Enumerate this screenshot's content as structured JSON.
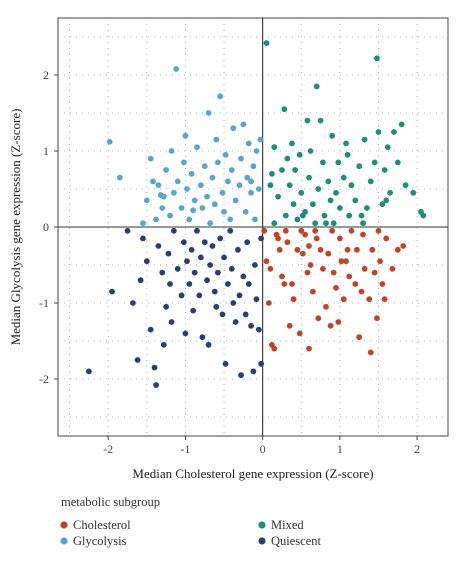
{
  "chart_data": {
    "type": "scatter",
    "title": "",
    "xlabel": "Median Cholesterol gene expression (Z-score)",
    "ylabel": "Median Glycolysis gene expression (Z-score)",
    "xlim": [
      -2.65,
      2.4
    ],
    "ylim": [
      -2.75,
      2.75
    ],
    "xticks": [
      -2,
      -1,
      0,
      1,
      2
    ],
    "yticks": [
      -2,
      -1,
      0,
      1,
      2
    ],
    "reference_lines": {
      "x": 0,
      "y": 0
    },
    "grid": "dotted",
    "legend": {
      "title": "metabolic subgroup",
      "placement": "bottom",
      "entries": [
        {
          "name": "Cholesterol",
          "color": "#c0442a"
        },
        {
          "name": "Mixed",
          "color": "#1e8f74"
        },
        {
          "name": "Glycolysis",
          "color": "#5aa7c3"
        },
        {
          "name": "Quiescent",
          "color": "#2b3f6e"
        }
      ]
    },
    "series": [
      {
        "name": "Cholesterol",
        "color": "#c0442a",
        "points": [
          [
            0.02,
            -0.05
          ],
          [
            0.05,
            -0.45
          ],
          [
            0.1,
            -0.55
          ],
          [
            0.12,
            -1.55
          ],
          [
            0.15,
            -1.6
          ],
          [
            0.2,
            -0.15
          ],
          [
            0.22,
            -0.3
          ],
          [
            0.25,
            -0.65
          ],
          [
            0.28,
            -0.75
          ],
          [
            0.3,
            -0.05
          ],
          [
            0.32,
            -0.2
          ],
          [
            0.35,
            -1.3
          ],
          [
            0.4,
            -0.95
          ],
          [
            0.45,
            -0.3
          ],
          [
            0.48,
            -1.4
          ],
          [
            0.5,
            -0.05
          ],
          [
            0.52,
            -0.35
          ],
          [
            0.55,
            -0.1
          ],
          [
            0.58,
            -0.6
          ],
          [
            0.6,
            -0.25
          ],
          [
            0.6,
            -1.6
          ],
          [
            0.62,
            -0.5
          ],
          [
            0.65,
            -0.85
          ],
          [
            0.7,
            -0.15
          ],
          [
            0.72,
            -1.2
          ],
          [
            0.75,
            -0.3
          ],
          [
            0.78,
            -0.55
          ],
          [
            0.82,
            -1.05
          ],
          [
            0.85,
            -0.35
          ],
          [
            0.9,
            -0.05
          ],
          [
            0.92,
            -0.6
          ],
          [
            0.95,
            -0.8
          ],
          [
            0.98,
            -1.25
          ],
          [
            1.0,
            -0.15
          ],
          [
            1.02,
            -0.45
          ],
          [
            1.05,
            -0.95
          ],
          [
            1.1,
            -0.3
          ],
          [
            1.12,
            -0.65
          ],
          [
            1.15,
            -0.05
          ],
          [
            1.2,
            -0.75
          ],
          [
            1.22,
            -0.3
          ],
          [
            1.25,
            -1.45
          ],
          [
            1.3,
            -0.1
          ],
          [
            1.32,
            -0.55
          ],
          [
            1.38,
            -0.95
          ],
          [
            1.42,
            -0.3
          ],
          [
            1.45,
            -0.6
          ],
          [
            1.48,
            -1.2
          ],
          [
            1.5,
            -0.05
          ],
          [
            1.52,
            -0.45
          ],
          [
            1.55,
            -0.75
          ],
          [
            1.6,
            -0.15
          ],
          [
            1.68,
            -0.55
          ],
          [
            1.75,
            -0.3
          ],
          [
            1.82,
            -0.25
          ],
          [
            0.08,
            -1.0
          ],
          [
            0.18,
            -0.1
          ],
          [
            0.38,
            -0.75
          ],
          [
            0.68,
            -0.05
          ],
          [
            0.88,
            -1.3
          ],
          [
            1.08,
            -0.45
          ],
          [
            1.28,
            -0.85
          ],
          [
            1.4,
            -1.65
          ],
          [
            1.58,
            -0.95
          ]
        ]
      },
      {
        "name": "Mixed",
        "color": "#1e8f74",
        "points": [
          [
            0.05,
            2.42
          ],
          [
            0.1,
            0.55
          ],
          [
            0.15,
            0.05
          ],
          [
            0.15,
            1.05
          ],
          [
            0.2,
            0.4
          ],
          [
            0.25,
            0.75
          ],
          [
            0.28,
            1.55
          ],
          [
            0.3,
            0.15
          ],
          [
            0.35,
            0.55
          ],
          [
            0.38,
            1.1
          ],
          [
            0.4,
            0.3
          ],
          [
            0.42,
            0.75
          ],
          [
            0.45,
            0.1
          ],
          [
            0.48,
            0.95
          ],
          [
            0.5,
            0.45
          ],
          [
            0.55,
            0.2
          ],
          [
            0.58,
            1.4
          ],
          [
            0.6,
            0.65
          ],
          [
            0.62,
            1.0
          ],
          [
            0.65,
            0.3
          ],
          [
            0.68,
            0.05
          ],
          [
            0.7,
            1.85
          ],
          [
            0.72,
            0.5
          ],
          [
            0.75,
            1.4
          ],
          [
            0.78,
            0.85
          ],
          [
            0.8,
            0.15
          ],
          [
            0.85,
            0.6
          ],
          [
            0.88,
            0.35
          ],
          [
            0.9,
            1.2
          ],
          [
            0.92,
            0.05
          ],
          [
            0.95,
            0.45
          ],
          [
            0.98,
            0.85
          ],
          [
            1.0,
            0.25
          ],
          [
            1.05,
            0.65
          ],
          [
            1.08,
            1.1
          ],
          [
            1.12,
            0.15
          ],
          [
            1.15,
            0.55
          ],
          [
            1.2,
            0.35
          ],
          [
            1.25,
            0.8
          ],
          [
            1.3,
            0.05
          ],
          [
            1.32,
            1.15
          ],
          [
            1.35,
            0.25
          ],
          [
            1.4,
            0.6
          ],
          [
            1.45,
            0.85
          ],
          [
            1.48,
            2.22
          ],
          [
            1.5,
            1.25
          ],
          [
            1.55,
            0.3
          ],
          [
            1.58,
            0.75
          ],
          [
            1.62,
            1.05
          ],
          [
            1.65,
            0.45
          ],
          [
            1.7,
            1.25
          ],
          [
            1.75,
            0.85
          ],
          [
            1.8,
            1.35
          ],
          [
            1.85,
            0.55
          ],
          [
            2.05,
            0.2
          ],
          [
            2.08,
            0.15
          ],
          [
            1.95,
            0.45
          ],
          [
            0.12,
            0.7
          ],
          [
            0.52,
            0.15
          ],
          [
            1.1,
            0.95
          ],
          [
            1.28,
            0.15
          ],
          [
            0.32,
            0.9
          ],
          [
            0.82,
            0.05
          ],
          [
            1.6,
            0.35
          ]
        ]
      },
      {
        "name": "Glycolysis",
        "color": "#5aa7c3",
        "points": [
          [
            -1.98,
            1.12
          ],
          [
            -1.85,
            0.65
          ],
          [
            -1.55,
            0.05
          ],
          [
            -1.5,
            0.35
          ],
          [
            -1.45,
            0.9
          ],
          [
            -1.42,
            0.6
          ],
          [
            -1.38,
            0.1
          ],
          [
            -1.35,
            0.55
          ],
          [
            -1.3,
            0.25
          ],
          [
            -1.28,
            0.4
          ],
          [
            -1.25,
            0.75
          ],
          [
            -1.2,
            0.15
          ],
          [
            -1.18,
            1.0
          ],
          [
            -1.15,
            0.45
          ],
          [
            -1.12,
            2.08
          ],
          [
            -1.1,
            0.6
          ],
          [
            -1.05,
            0.25
          ],
          [
            -1.02,
            0.85
          ],
          [
            -1.0,
            1.2
          ],
          [
            -0.98,
            0.5
          ],
          [
            -0.95,
            0.1
          ],
          [
            -0.92,
            0.7
          ],
          [
            -0.88,
            0.35
          ],
          [
            -0.85,
            1.05
          ],
          [
            -0.8,
            0.55
          ],
          [
            -0.78,
            0.25
          ],
          [
            -0.75,
            0.8
          ],
          [
            -0.72,
            0.4
          ],
          [
            -0.7,
            1.5
          ],
          [
            -0.68,
            0.05
          ],
          [
            -0.65,
            0.65
          ],
          [
            -0.62,
            0.3
          ],
          [
            -0.6,
            1.15
          ],
          [
            -0.58,
            0.85
          ],
          [
            -0.55,
            1.72
          ],
          [
            -0.52,
            0.45
          ],
          [
            -0.5,
            0.2
          ],
          [
            -0.48,
            0.95
          ],
          [
            -0.45,
            0.6
          ],
          [
            -0.42,
            0.1
          ],
          [
            -0.4,
            0.75
          ],
          [
            -0.38,
            1.3
          ],
          [
            -0.35,
            0.35
          ],
          [
            -0.3,
            0.55
          ],
          [
            -0.28,
            0.9
          ],
          [
            -0.25,
            1.35
          ],
          [
            -0.22,
            0.2
          ],
          [
            -0.2,
            0.65
          ],
          [
            -0.18,
            1.1
          ],
          [
            -0.15,
            0.45
          ],
          [
            -0.12,
            0.8
          ],
          [
            -0.1,
            0.1
          ],
          [
            -0.08,
            1.0
          ],
          [
            -0.05,
            0.5
          ],
          [
            -0.03,
            1.15
          ],
          [
            -1.32,
            0.42
          ],
          [
            -0.9,
            0.22
          ],
          [
            -0.15,
            0.6
          ]
        ]
      },
      {
        "name": "Quiescent",
        "color": "#2b3f6e",
        "points": [
          [
            -2.25,
            -1.9
          ],
          [
            -1.95,
            -0.85
          ],
          [
            -1.68,
            -1.0
          ],
          [
            -1.62,
            -1.75
          ],
          [
            -1.58,
            -0.7
          ],
          [
            -1.55,
            -0.15
          ],
          [
            -1.5,
            -0.45
          ],
          [
            -1.45,
            -1.35
          ],
          [
            -1.4,
            -1.85
          ],
          [
            -1.38,
            -2.08
          ],
          [
            -1.35,
            -0.25
          ],
          [
            -1.3,
            -0.6
          ],
          [
            -1.25,
            -1.05
          ],
          [
            -1.22,
            -0.35
          ],
          [
            -1.2,
            -0.75
          ],
          [
            -1.18,
            -1.25
          ],
          [
            -1.15,
            -0.05
          ],
          [
            -1.1,
            -0.55
          ],
          [
            -1.05,
            -0.9
          ],
          [
            -1.02,
            -0.2
          ],
          [
            -1.0,
            -1.4
          ],
          [
            -0.98,
            -0.45
          ],
          [
            -0.95,
            -0.75
          ],
          [
            -0.92,
            -0.3
          ],
          [
            -0.9,
            -1.1
          ],
          [
            -0.88,
            -0.6
          ],
          [
            -0.85,
            -0.05
          ],
          [
            -0.82,
            -0.9
          ],
          [
            -0.8,
            -0.4
          ],
          [
            -0.78,
            -1.45
          ],
          [
            -0.75,
            -0.2
          ],
          [
            -0.72,
            -0.7
          ],
          [
            -0.7,
            -1.55
          ],
          [
            -0.68,
            -0.5
          ],
          [
            -0.65,
            -0.25
          ],
          [
            -0.62,
            -0.85
          ],
          [
            -0.6,
            -1.05
          ],
          [
            -0.58,
            -0.6
          ],
          [
            -0.55,
            -0.15
          ],
          [
            -0.52,
            -1.15
          ],
          [
            -0.5,
            -0.4
          ],
          [
            -0.48,
            -1.8
          ],
          [
            -0.45,
            -0.75
          ],
          [
            -0.42,
            -0.05
          ],
          [
            -0.4,
            -0.55
          ],
          [
            -0.38,
            -1.0
          ],
          [
            -0.35,
            -1.25
          ],
          [
            -0.32,
            -0.3
          ],
          [
            -0.3,
            -0.9
          ],
          [
            -0.28,
            -1.95
          ],
          [
            -0.25,
            -0.65
          ],
          [
            -0.22,
            -1.15
          ],
          [
            -0.2,
            -0.2
          ],
          [
            -0.15,
            -1.3
          ],
          [
            -0.12,
            -1.9
          ],
          [
            -0.1,
            -0.5
          ],
          [
            -0.08,
            -0.95
          ],
          [
            -0.05,
            -1.35
          ],
          [
            -0.02,
            -0.15
          ],
          [
            -1.75,
            -0.05
          ],
          [
            -1.28,
            -1.55
          ],
          [
            -0.18,
            -0.75
          ],
          [
            -0.02,
            -1.8
          ]
        ]
      }
    ]
  }
}
